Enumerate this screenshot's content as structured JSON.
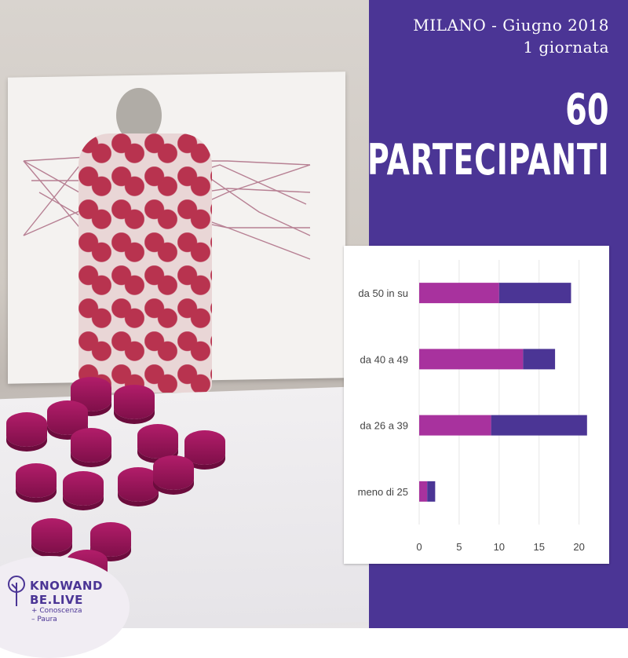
{
  "event": {
    "line1": "MILANO - Giugno 2018",
    "line2": "1 giornata"
  },
  "headline": {
    "count": "60",
    "label": "PARTECIPANTI"
  },
  "colors": {
    "panel": "#4b3595",
    "series_a": "#a8329e",
    "series_b": "#4b3595"
  },
  "chart_data": {
    "type": "bar",
    "orientation": "horizontal",
    "stacked": true,
    "categories": [
      "da 50 in su",
      "da 40 a 49",
      "da 26 a 39",
      "meno di 25"
    ],
    "series": [
      {
        "values": [
          10,
          13,
          9,
          1
        ]
      },
      {
        "values": [
          9,
          4,
          12,
          1
        ]
      }
    ],
    "x_ticks": [
      "0",
      "5",
      "10",
      "15",
      "20"
    ],
    "xlim": [
      0,
      22
    ],
    "grid": true,
    "title": "",
    "xlabel": "",
    "ylabel": ""
  },
  "logo": {
    "line1": "KNOWAND",
    "line2": "BE.LIVE",
    "tag1": "+ Conoscenza",
    "tag2": "– Paura"
  }
}
